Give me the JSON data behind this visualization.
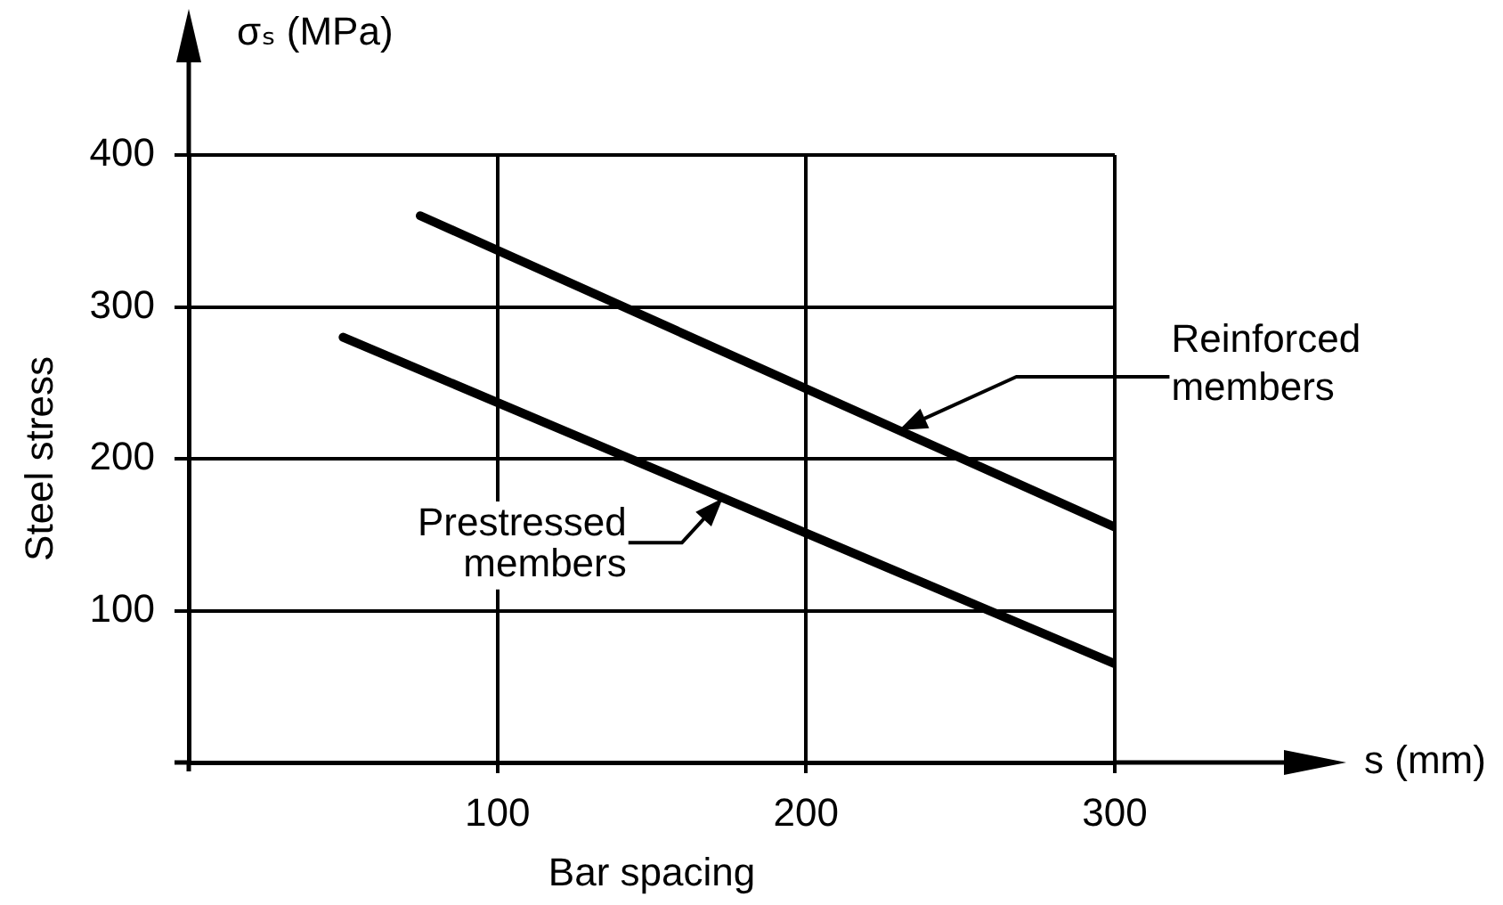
{
  "chart_data": {
    "type": "line",
    "xlabel": "Bar spacing",
    "ylabel": "Steel stress",
    "annotations": [
      "σₛ (MPa)",
      "s (mm)",
      "Reinforced members",
      {
        "text": "Prestressed members",
        "x": 173,
        "y": 174
      }
    ],
    "series": [
      {
        "color": "#000000",
        "x": [
          75,
          300
        ],
        "values": [
          360,
          155
        ]
      },
      {
        "color": "#000000",
        "x": [
          50,
          300
        ],
        "values": [
          280,
          65
        ]
      }
    ],
    "xlim": [
      0,
      300
    ],
    "xticks": [
      100,
      200,
      300
    ],
    "ylim": [
      0,
      400
    ],
    "yticks": [
      100,
      200,
      300,
      400
    ],
    "grid": true,
    "marker": "none",
    "legend": false
  }
}
